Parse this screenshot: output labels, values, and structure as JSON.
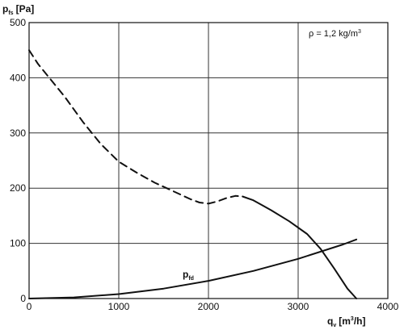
{
  "chart_data": {
    "type": "line",
    "xlim": [
      0,
      4000
    ],
    "ylim": [
      0,
      500
    ],
    "grid": true,
    "x_ticks": [
      "0",
      "1000",
      "2000",
      "3000",
      "4000"
    ],
    "y_ticks": [
      "0",
      "100",
      "200",
      "300",
      "400",
      "500"
    ],
    "ylabel": {
      "main": "p",
      "sub": "fs",
      "unit": "[Pa]"
    },
    "xlabel": {
      "main": "q",
      "sub": "v",
      "unit_pre": "[m",
      "unit_sup": "3",
      "unit_post": "/h]"
    },
    "annotation": {
      "pre": "ρ = 1,2 kg/m",
      "sup": "3"
    },
    "series": [
      {
        "style": "dashed",
        "x": [
          0,
          100,
          200,
          400,
          600,
          800,
          1000,
          1200,
          1400,
          1600,
          1800,
          1900,
          2000,
          2100,
          2200,
          2300,
          2380
        ],
        "y": [
          450,
          425,
          405,
          365,
          320,
          280,
          248,
          228,
          210,
          195,
          180,
          174,
          172,
          176,
          182,
          186,
          185
        ]
      },
      {
        "style": "solid",
        "x": [
          2380,
          2500,
          2700,
          2900,
          3100,
          3250,
          3400,
          3550,
          3650
        ],
        "y": [
          185,
          178,
          160,
          140,
          117,
          90,
          55,
          18,
          0
        ]
      },
      {
        "name": "p",
        "name_sub": "fd",
        "style": "solid",
        "x": [
          0,
          500,
          1000,
          1500,
          2000,
          2500,
          3000,
          3500,
          3650
        ],
        "y": [
          0,
          2,
          8,
          18,
          32,
          50,
          72,
          98,
          107
        ]
      }
    ]
  }
}
